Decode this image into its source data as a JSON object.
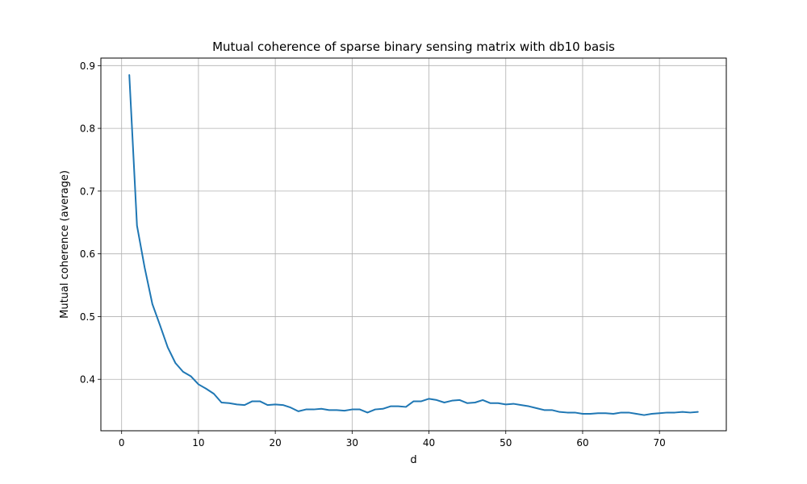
{
  "chart_data": {
    "type": "line",
    "title": "Mutual coherence of sparse binary sensing matrix with db10 basis",
    "xlabel": "d",
    "ylabel": "Mutual coherence (average)",
    "xlim": [
      -2.7,
      78.7
    ],
    "ylim": [
      0.318,
      0.912
    ],
    "xticks": [
      0,
      10,
      20,
      30,
      40,
      50,
      60,
      70
    ],
    "yticks": [
      0.4,
      0.5,
      0.6,
      0.7,
      0.8,
      0.9
    ],
    "grid": true,
    "legend": "none",
    "series_color": "#1f77b4",
    "x": [
      1,
      2,
      3,
      4,
      5,
      6,
      7,
      8,
      9,
      10,
      11,
      12,
      13,
      14,
      15,
      16,
      17,
      18,
      19,
      20,
      21,
      22,
      23,
      24,
      25,
      26,
      27,
      28,
      29,
      30,
      31,
      32,
      33,
      34,
      35,
      36,
      37,
      38,
      39,
      40,
      41,
      42,
      43,
      44,
      45,
      46,
      47,
      48,
      49,
      50,
      51,
      52,
      53,
      54,
      55,
      56,
      57,
      58,
      59,
      60,
      61,
      62,
      63,
      64,
      65,
      66,
      67,
      68,
      69,
      70,
      71,
      72,
      73,
      74,
      75
    ],
    "y": [
      0.885,
      0.645,
      0.578,
      0.52,
      0.486,
      0.451,
      0.426,
      0.412,
      0.405,
      0.392,
      0.385,
      0.377,
      0.363,
      0.362,
      0.36,
      0.359,
      0.365,
      0.365,
      0.359,
      0.36,
      0.359,
      0.355,
      0.349,
      0.352,
      0.352,
      0.353,
      0.351,
      0.351,
      0.35,
      0.352,
      0.352,
      0.347,
      0.352,
      0.353,
      0.357,
      0.357,
      0.356,
      0.365,
      0.365,
      0.369,
      0.367,
      0.363,
      0.366,
      0.367,
      0.362,
      0.363,
      0.367,
      0.362,
      0.362,
      0.36,
      0.361,
      0.359,
      0.357,
      0.354,
      0.351,
      0.351,
      0.348,
      0.347,
      0.347,
      0.345,
      0.345,
      0.346,
      0.346,
      0.345,
      0.347,
      0.347,
      0.345,
      0.343,
      0.345,
      0.346,
      0.347,
      0.347,
      0.348,
      0.347,
      0.348
    ]
  }
}
